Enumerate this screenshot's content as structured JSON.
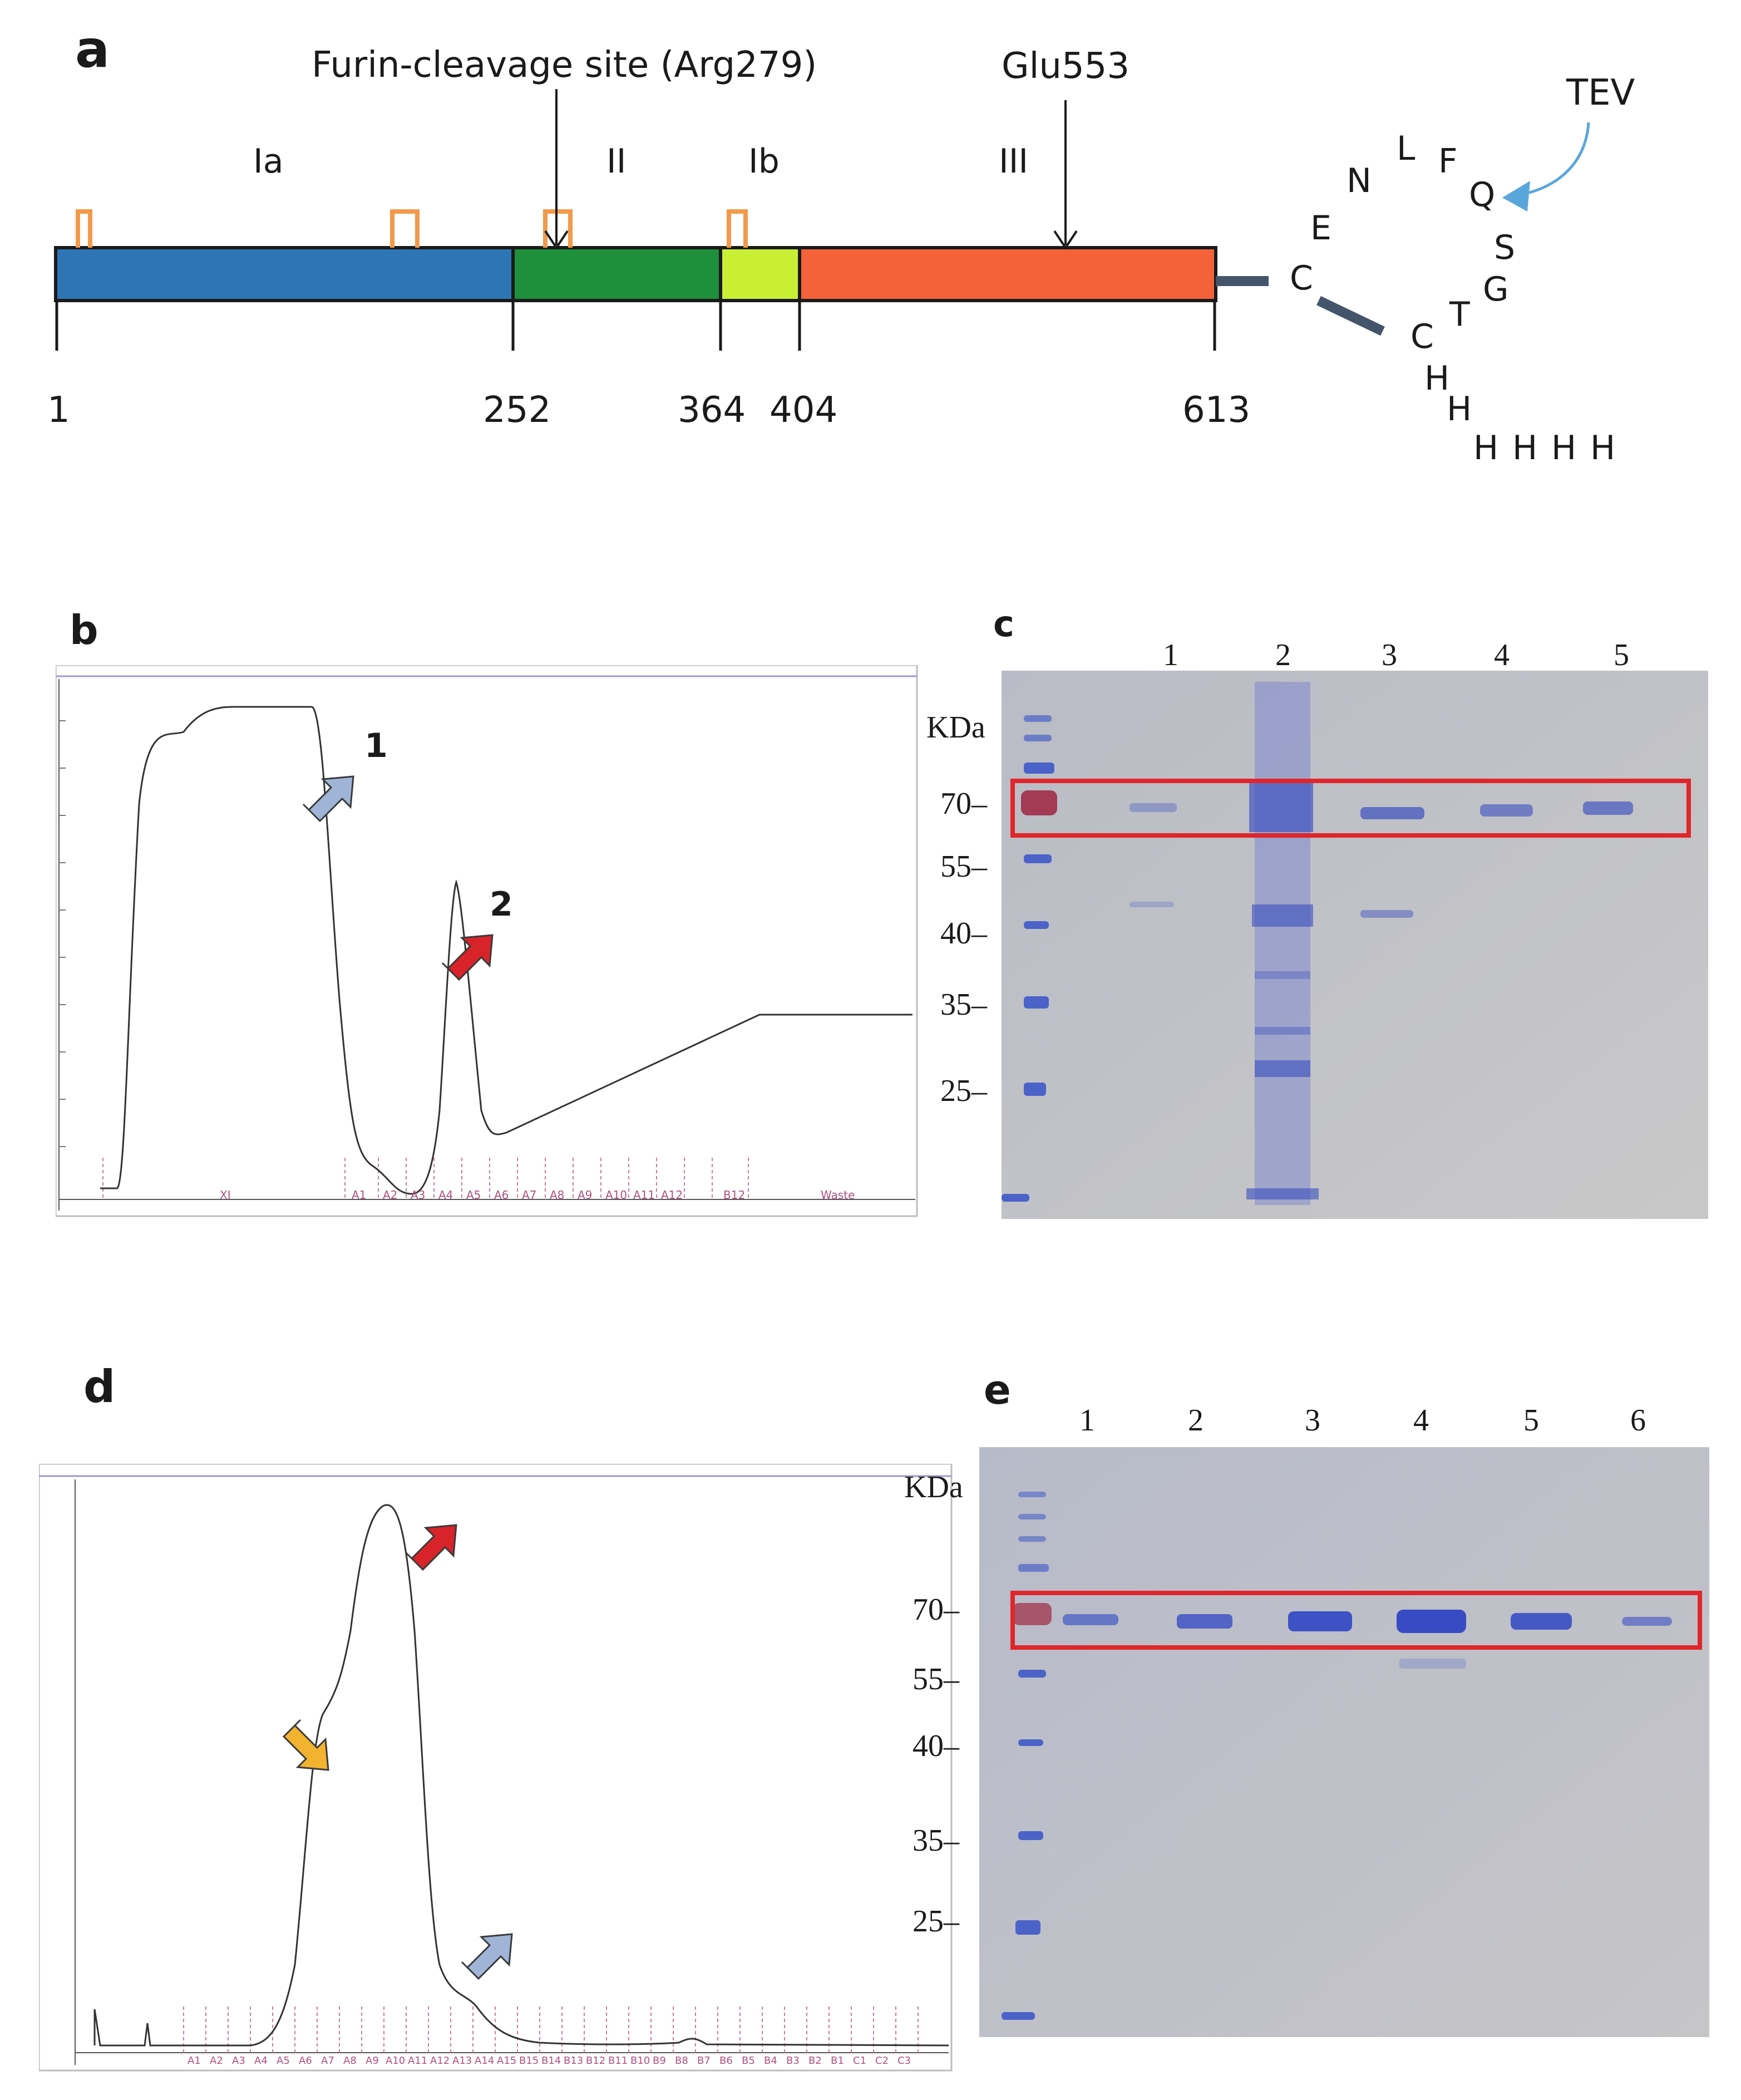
{
  "panels": {
    "a": {
      "label": "a",
      "furin_label": "Furin-cleavage site (Arg279)",
      "glu_label": "Glu553",
      "tev_label": "TEV",
      "domains": [
        {
          "name": "Ia",
          "start": 1,
          "end": 252,
          "color": "#2e75b6"
        },
        {
          "name": "II",
          "start": 252,
          "end": 364,
          "color": "#1e8f3a"
        },
        {
          "name": "Ib",
          "start": 364,
          "end": 404,
          "color": "#c8ef34"
        },
        {
          "name": "III",
          "start": 404,
          "end": 613,
          "color": "#f4623a"
        }
      ],
      "positions": [
        "1",
        "252",
        "364",
        "404",
        "613"
      ],
      "tag_letters": [
        "C",
        "E",
        "N",
        "L",
        "F",
        "Q",
        "S",
        "G",
        "T",
        "C",
        "H",
        "H",
        "H",
        "H",
        "H",
        "H"
      ]
    },
    "b": {
      "label": "b",
      "arrow1": "1",
      "arrow2": "2",
      "fraction_labels": [
        "XI",
        "A1",
        "A2",
        "A3",
        "A4",
        "A5",
        "A6",
        "A7",
        "A8",
        "A9",
        "A10",
        "A11",
        "A12",
        "B12",
        "Waste"
      ]
    },
    "c": {
      "label": "c",
      "kda": "KDa",
      "lanes": [
        "1",
        "2",
        "3",
        "4",
        "5"
      ],
      "markers": [
        "70–",
        "55–",
        "40–",
        "35–",
        "25–"
      ]
    },
    "d": {
      "label": "d",
      "fraction_labels": [
        "A1",
        "A2",
        "A3",
        "A4",
        "A5",
        "A6",
        "A7",
        "A8",
        "A9",
        "A10",
        "A11",
        "A12",
        "A13",
        "A14",
        "A15",
        "B15",
        "B14",
        "B13",
        "B12",
        "B11",
        "B10",
        "B9",
        "B8",
        "B7",
        "B6",
        "B5",
        "B4",
        "B3",
        "B2",
        "B1",
        "C1",
        "C2",
        "C3"
      ]
    },
    "e": {
      "label": "e",
      "kda": "KDa",
      "lanes": [
        "1",
        "2",
        "3",
        "4",
        "5",
        "6"
      ],
      "markers": [
        "70–",
        "55–",
        "40–",
        "35–",
        "25–"
      ]
    }
  },
  "colors": {
    "highlight_box": "#e0262a",
    "gel_background": "#c4c4c8",
    "band": "#3a4fc0",
    "arrow_blue": "#9fb4d6",
    "arrow_red": "#d8232a",
    "arrow_yellow": "#f2b330",
    "tev_arrow": "#5aa6dc",
    "lid": "#f29a4a"
  }
}
